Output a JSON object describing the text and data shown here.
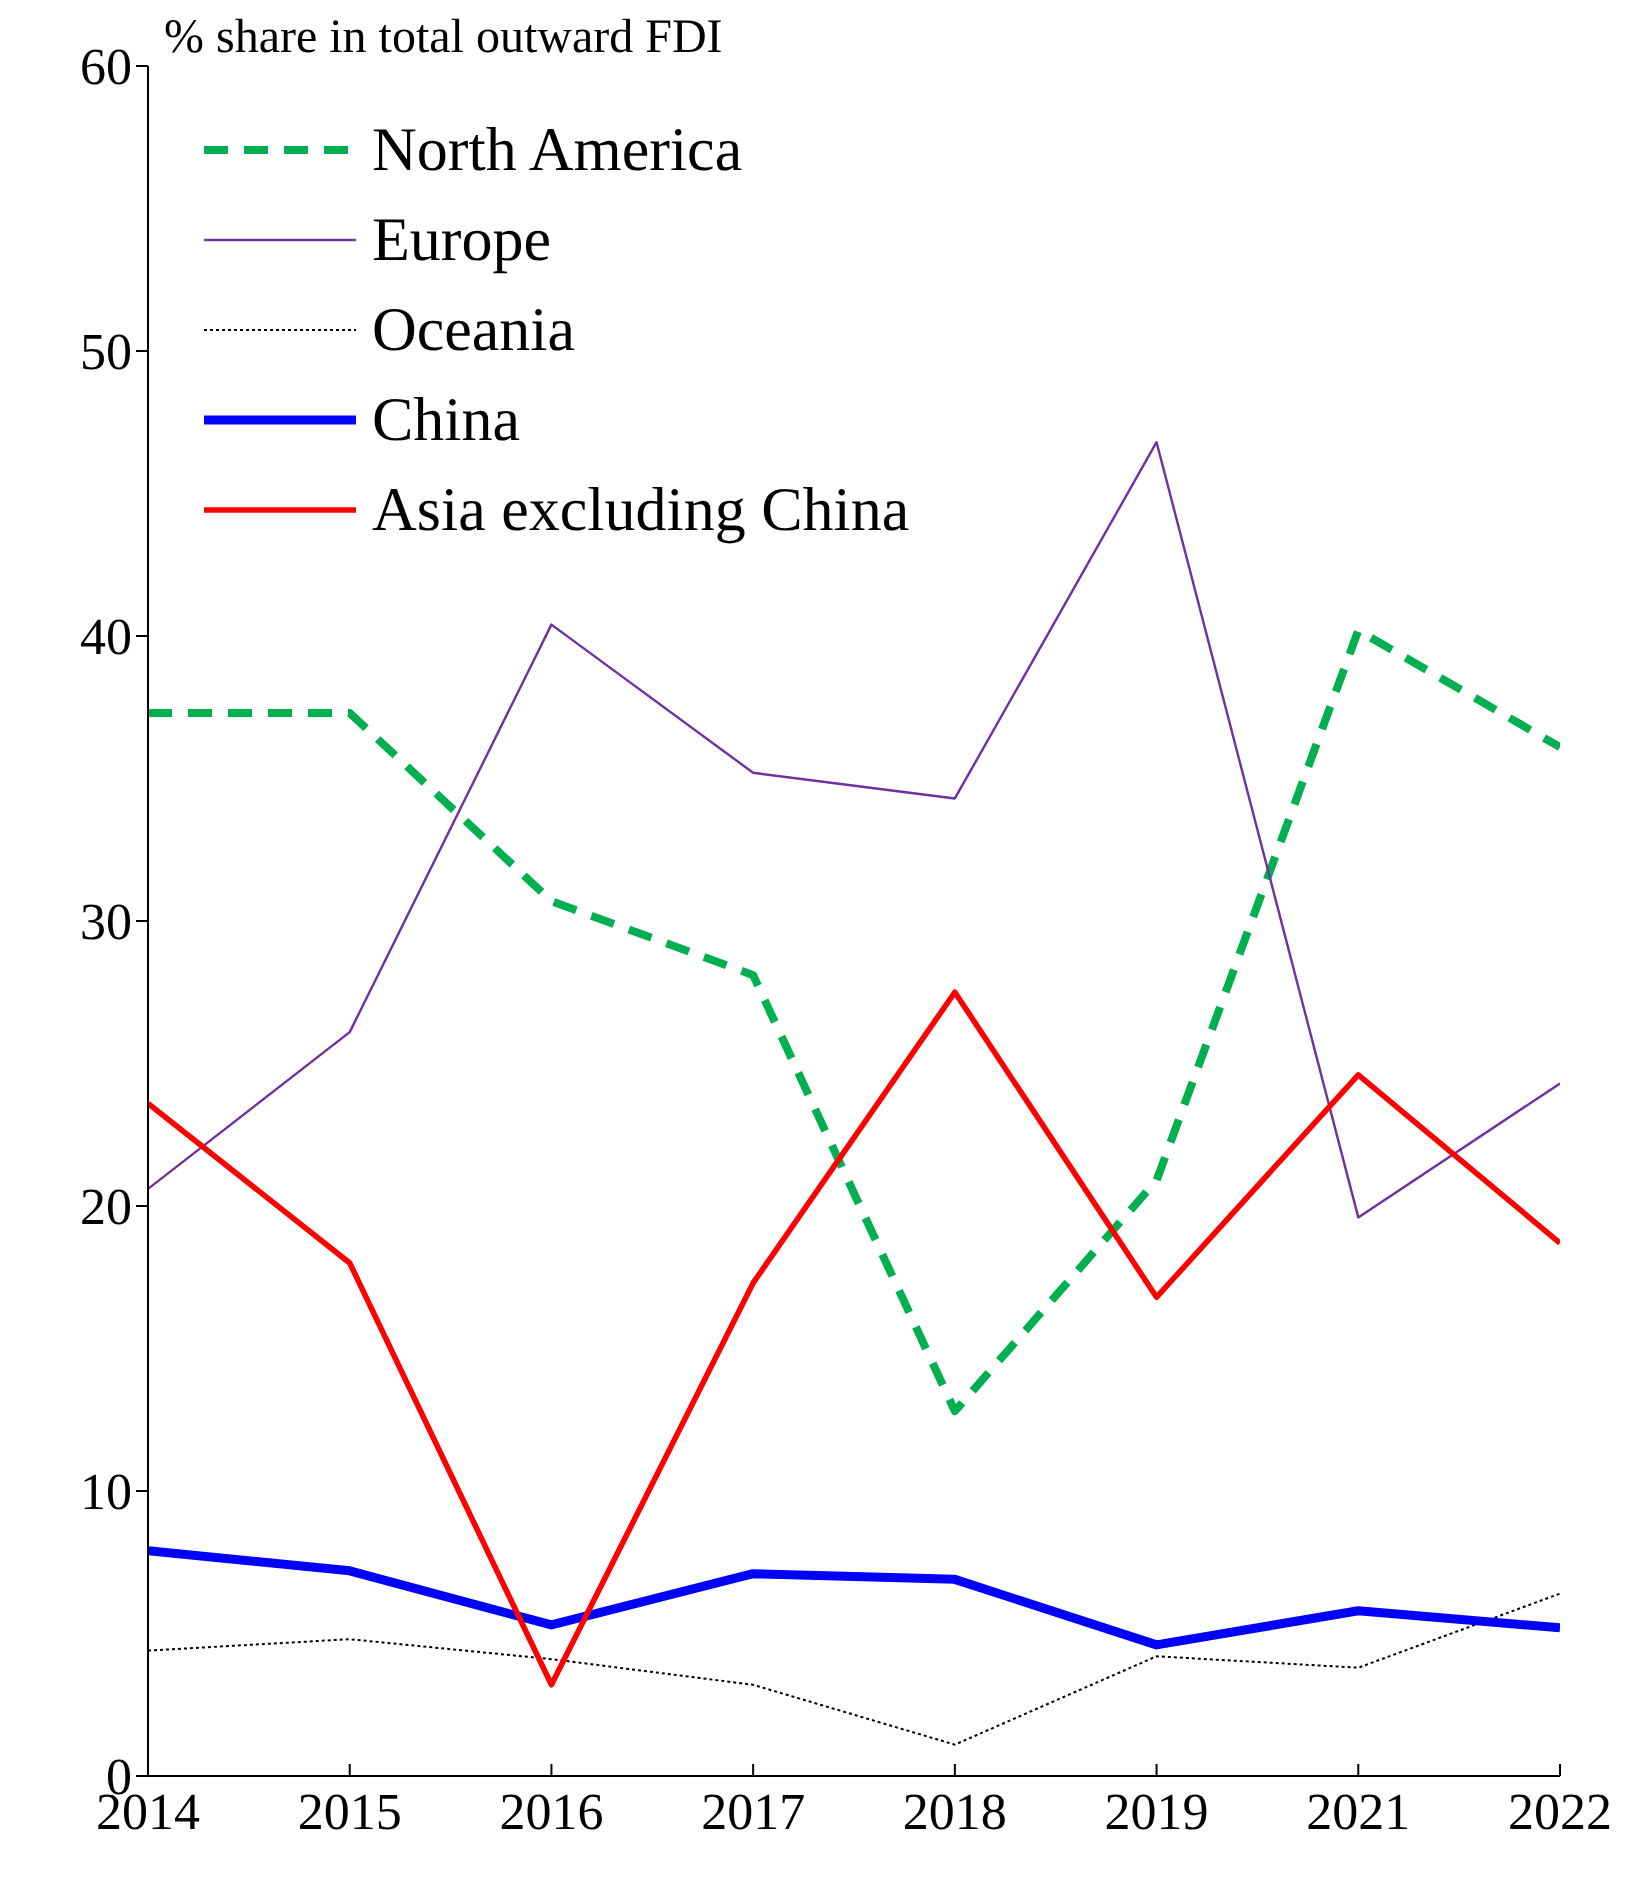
{
  "chart_data": {
    "type": "line",
    "ylabel": "% share in total outward FDI",
    "categories": [
      "2014",
      "2015",
      "2016",
      "2017",
      "2018",
      "2019",
      "2021",
      "2022"
    ],
    "series": [
      {
        "name": "North America",
        "color": "#00b050",
        "line_style": "dashed",
        "values": [
          37.3,
          37.3,
          30.7,
          28.1,
          12.8,
          20.9,
          40.2,
          36.1
        ]
      },
      {
        "name": "Europe",
        "color": "#7030a0",
        "line_style": "solid",
        "values": [
          20.6,
          26.1,
          40.4,
          35.2,
          34.3,
          46.8,
          19.6,
          24.3
        ]
      },
      {
        "name": "Oceania",
        "color": "#000000",
        "line_style": "dotted",
        "values": [
          4.4,
          4.8,
          4.1,
          3.2,
          1.1,
          4.2,
          3.8,
          6.4
        ]
      },
      {
        "name": "China",
        "color": "#0000ff",
        "line_style": "solid",
        "values": [
          7.9,
          7.2,
          5.3,
          7.1,
          6.9,
          4.6,
          5.8,
          5.2
        ]
      },
      {
        "name": "Asia excluding China",
        "color": "#ff0000",
        "line_style": "solid",
        "values": [
          23.6,
          18.0,
          3.2,
          17.3,
          27.5,
          16.8,
          24.6,
          18.7
        ]
      }
    ],
    "ylim": [
      0,
      60
    ],
    "yticks": [
      0,
      10,
      20,
      30,
      40,
      50,
      60
    ],
    "grid": false,
    "legend": "top left",
    "marker": "none"
  }
}
